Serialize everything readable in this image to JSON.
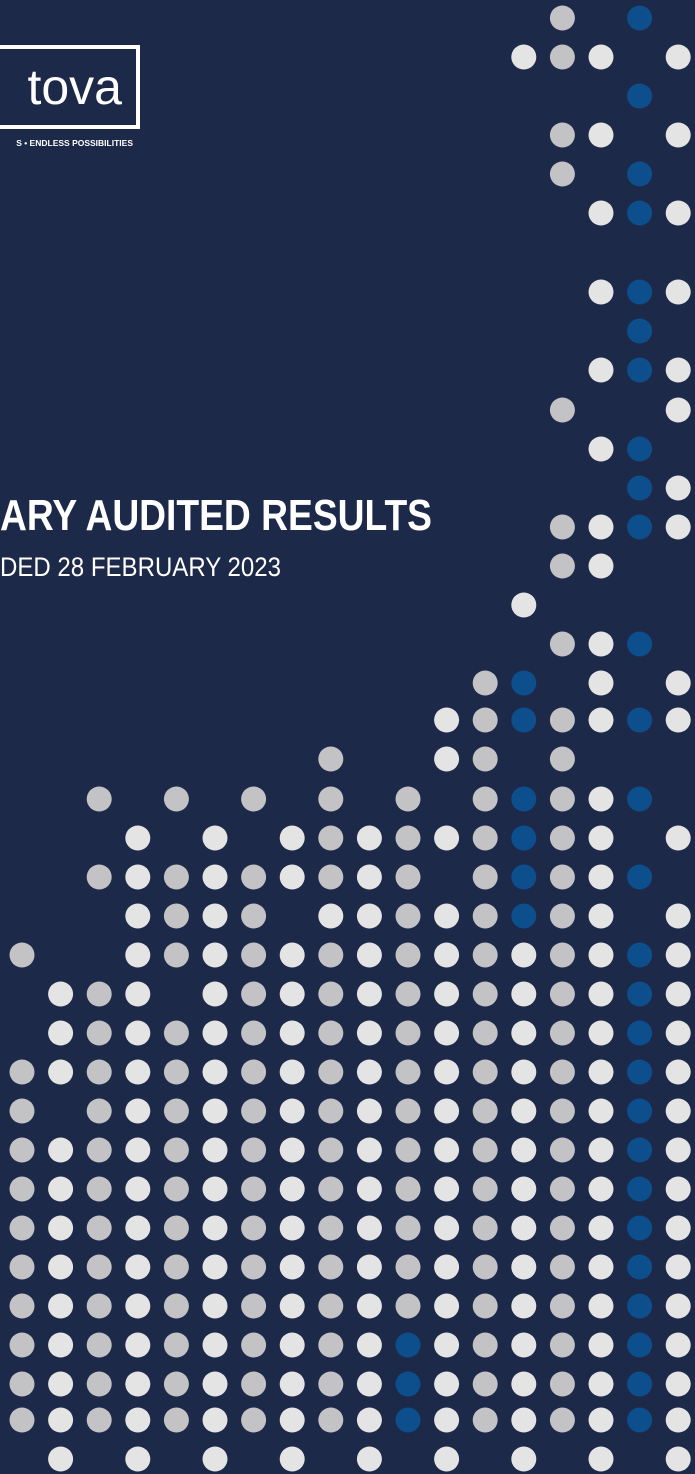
{
  "logo": {
    "name": "tova",
    "tagline": "S • ENDLESS POSSIBILITIES"
  },
  "cover": {
    "title": "ARY AUDITED RESULTS",
    "subtitle": "DED 28 FEBRUARY 2023"
  }
}
